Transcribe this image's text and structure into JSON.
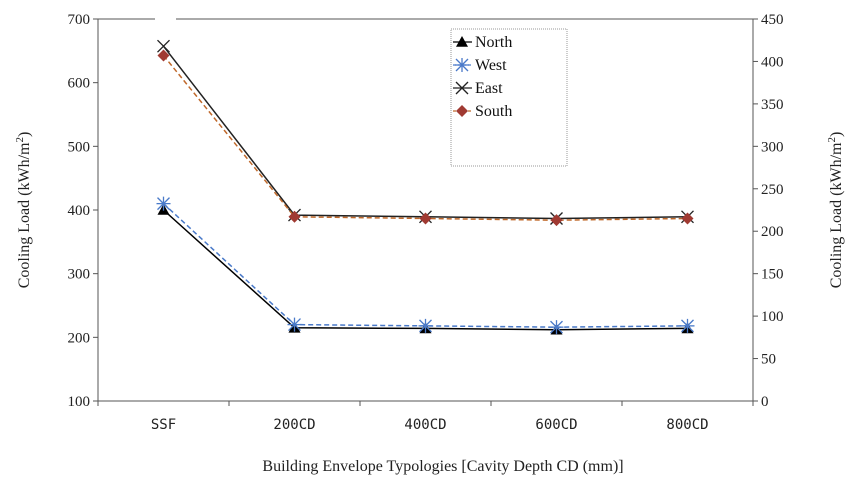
{
  "chart_data": {
    "type": "line",
    "categories": [
      "SSF",
      "200CD",
      "400CD",
      "600CD",
      "800CD"
    ],
    "xlabel": "Building Envelope Typologies [Cavity Depth CD (mm)]",
    "ylabel_left": "Cooling Load (kWh/m",
    "ylabel_right": "Cooling Load (kWh/m",
    "ylabel_sup": "2",
    "ylabel_close": ")",
    "ylim_left": [
      100,
      700
    ],
    "yticks_left": [
      "100",
      "200",
      "300",
      "400",
      "500",
      "600",
      "700"
    ],
    "ylim_right": [
      0,
      450
    ],
    "yticks_right": [
      "0",
      "50",
      "100",
      "150",
      "200",
      "250",
      "300",
      "350",
      "400",
      "450"
    ],
    "grid": false,
    "legend_position": "top-center",
    "series": [
      {
        "name": "North",
        "axis": "left",
        "values": [
          400,
          215,
          214,
          212,
          214
        ],
        "color": "#000000",
        "marker": "triangle",
        "dash": false
      },
      {
        "name": "West",
        "axis": "left",
        "values": [
          410,
          220,
          218,
          216,
          218
        ],
        "color": "#4a7ac9",
        "marker": "asterisk",
        "dash": true
      },
      {
        "name": "East",
        "axis": "right",
        "values": [
          418,
          219,
          217,
          215,
          217
        ],
        "color": "#222222",
        "marker": "x",
        "dash": false
      },
      {
        "name": "South",
        "axis": "right",
        "values": [
          407,
          217,
          215,
          213,
          215
        ],
        "color": "#a03a32",
        "marker": "diamond",
        "dash": true,
        "line_color": "#c0692b"
      }
    ]
  }
}
